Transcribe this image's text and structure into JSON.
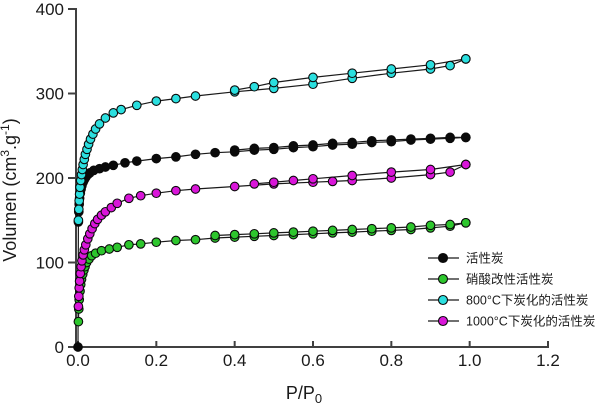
{
  "page": {
    "background": "#ffffff"
  },
  "chart_data": {
    "type": "line",
    "subtype": "adsorption-desorption-isotherm",
    "title": "",
    "xlabel": "P/P0",
    "ylabel": "Volumen (cm3.g-1)",
    "xlabel_parts": [
      {
        "t": "P/P"
      },
      {
        "t": "0",
        "script": "sub"
      }
    ],
    "ylabel_parts": [
      {
        "t": "Volumen (cm"
      },
      {
        "t": "3",
        "script": "sup"
      },
      {
        "t": ".g"
      },
      {
        "t": "-1",
        "script": "sup"
      },
      {
        "t": ")"
      }
    ],
    "grid": false,
    "legend_position": "lower right",
    "x_axis": {
      "range": [
        0,
        1.2
      ],
      "ticks": [
        0,
        0.2,
        0.4,
        0.6,
        0.8,
        1.0,
        1.2
      ],
      "tick_labels": [
        "0.0",
        "0.2",
        "0.4",
        "0.6",
        "0.8",
        "1.0",
        "1.2"
      ]
    },
    "y_axis": {
      "range": [
        0,
        400
      ],
      "ticks": [
        0,
        100,
        200,
        300,
        400
      ],
      "tick_labels": [
        "0",
        "100",
        "200",
        "300",
        "400"
      ]
    },
    "axis_color": "#404040",
    "line_color": "#1a1a1a",
    "series": [
      {
        "name": "活性炭",
        "color": "#0a0a0a",
        "marker": "circle",
        "adsorption": [
          [
            0,
            0
          ],
          [
            0.001,
            148
          ],
          [
            0.002,
            160
          ],
          [
            0.003,
            169
          ],
          [
            0.004,
            176
          ],
          [
            0.006,
            182
          ],
          [
            0.008,
            187
          ],
          [
            0.01,
            191
          ],
          [
            0.013,
            195
          ],
          [
            0.016,
            198
          ],
          [
            0.02,
            201
          ],
          [
            0.025,
            204
          ],
          [
            0.03,
            206
          ],
          [
            0.04,
            209
          ],
          [
            0.055,
            211
          ],
          [
            0.07,
            213
          ],
          [
            0.09,
            215
          ],
          [
            0.12,
            218
          ],
          [
            0.15,
            220
          ],
          [
            0.2,
            223
          ],
          [
            0.25,
            225
          ],
          [
            0.3,
            228
          ],
          [
            0.35,
            230
          ],
          [
            0.4,
            231
          ],
          [
            0.45,
            233
          ],
          [
            0.5,
            234
          ],
          [
            0.55,
            236
          ],
          [
            0.6,
            237
          ],
          [
            0.65,
            239
          ],
          [
            0.7,
            240
          ],
          [
            0.75,
            242
          ],
          [
            0.8,
            243
          ],
          [
            0.85,
            245
          ],
          [
            0.9,
            246
          ],
          [
            0.95,
            247
          ],
          [
            0.99,
            248
          ]
        ],
        "desorption": [
          [
            0.99,
            248
          ],
          [
            0.95,
            248
          ],
          [
            0.9,
            247
          ],
          [
            0.85,
            246
          ],
          [
            0.8,
            245
          ],
          [
            0.75,
            244
          ],
          [
            0.7,
            242
          ],
          [
            0.65,
            241
          ],
          [
            0.6,
            239
          ],
          [
            0.55,
            238
          ],
          [
            0.5,
            236
          ],
          [
            0.45,
            235
          ],
          [
            0.4,
            233
          ]
        ]
      },
      {
        "name": "硝酸改性活性炭",
        "color": "#2DC62D",
        "marker": "circle",
        "adsorption": [
          [
            0.001,
            30
          ],
          [
            0.002,
            45
          ],
          [
            0.003,
            56
          ],
          [
            0.005,
            66
          ],
          [
            0.007,
            74
          ],
          [
            0.009,
            80
          ],
          [
            0.012,
            86
          ],
          [
            0.015,
            91
          ],
          [
            0.018,
            95
          ],
          [
            0.022,
            100
          ],
          [
            0.028,
            104
          ],
          [
            0.035,
            108
          ],
          [
            0.045,
            111
          ],
          [
            0.06,
            114
          ],
          [
            0.08,
            116
          ],
          [
            0.1,
            118
          ],
          [
            0.13,
            121
          ],
          [
            0.16,
            122
          ],
          [
            0.2,
            124
          ],
          [
            0.25,
            126
          ],
          [
            0.3,
            127
          ],
          [
            0.35,
            129
          ],
          [
            0.4,
            130
          ],
          [
            0.45,
            131
          ],
          [
            0.5,
            132
          ],
          [
            0.55,
            133
          ],
          [
            0.6,
            134
          ],
          [
            0.65,
            135
          ],
          [
            0.7,
            136
          ],
          [
            0.75,
            137
          ],
          [
            0.8,
            138
          ],
          [
            0.85,
            139
          ],
          [
            0.9,
            141
          ],
          [
            0.95,
            143
          ],
          [
            0.99,
            147
          ]
        ],
        "desorption": [
          [
            0.99,
            147
          ],
          [
            0.95,
            145
          ],
          [
            0.9,
            144
          ],
          [
            0.85,
            142
          ],
          [
            0.8,
            141
          ],
          [
            0.75,
            140
          ],
          [
            0.7,
            139
          ],
          [
            0.65,
            138
          ],
          [
            0.6,
            137
          ],
          [
            0.55,
            136
          ],
          [
            0.5,
            135
          ],
          [
            0.45,
            134
          ],
          [
            0.4,
            133
          ],
          [
            0.35,
            132
          ]
        ]
      },
      {
        "name": "800°C下炭化的活性炭",
        "color": "#2BDFDF",
        "marker": "circle",
        "adsorption": [
          [
            0.001,
            150
          ],
          [
            0.002,
            163
          ],
          [
            0.003,
            173
          ],
          [
            0.004,
            181
          ],
          [
            0.005,
            189
          ],
          [
            0.007,
            197
          ],
          [
            0.009,
            204
          ],
          [
            0.011,
            210
          ],
          [
            0.013,
            216
          ],
          [
            0.016,
            222
          ],
          [
            0.019,
            228
          ],
          [
            0.023,
            234
          ],
          [
            0.027,
            240
          ],
          [
            0.032,
            246
          ],
          [
            0.038,
            252
          ],
          [
            0.045,
            258
          ],
          [
            0.055,
            264
          ],
          [
            0.07,
            271
          ],
          [
            0.09,
            277
          ],
          [
            0.11,
            281
          ],
          [
            0.15,
            286
          ],
          [
            0.2,
            291
          ],
          [
            0.25,
            294
          ],
          [
            0.3,
            297
          ],
          [
            0.4,
            302
          ],
          [
            0.5,
            306
          ],
          [
            0.6,
            311
          ],
          [
            0.7,
            318
          ],
          [
            0.8,
            324
          ],
          [
            0.9,
            329
          ],
          [
            0.95,
            333
          ],
          [
            0.99,
            341
          ]
        ],
        "desorption": [
          [
            0.99,
            341
          ],
          [
            0.9,
            334
          ],
          [
            0.8,
            329
          ],
          [
            0.7,
            324
          ],
          [
            0.6,
            319
          ],
          [
            0.5,
            313
          ],
          [
            0.45,
            308
          ],
          [
            0.4,
            304
          ]
        ]
      },
      {
        "name": "1000°C下炭化的活性炭",
        "color": "#D916D9",
        "marker": "circle",
        "adsorption": [
          [
            0.001,
            48
          ],
          [
            0.002,
            60
          ],
          [
            0.003,
            70
          ],
          [
            0.004,
            78
          ],
          [
            0.006,
            87
          ],
          [
            0.008,
            95
          ],
          [
            0.01,
            102
          ],
          [
            0.013,
            109
          ],
          [
            0.016,
            115
          ],
          [
            0.02,
            121
          ],
          [
            0.025,
            128
          ],
          [
            0.03,
            134
          ],
          [
            0.036,
            140
          ],
          [
            0.043,
            146
          ],
          [
            0.05,
            151
          ],
          [
            0.06,
            156
          ],
          [
            0.07,
            160
          ],
          [
            0.085,
            165
          ],
          [
            0.1,
            170
          ],
          [
            0.13,
            176
          ],
          [
            0.16,
            179
          ],
          [
            0.2,
            182
          ],
          [
            0.25,
            185
          ],
          [
            0.3,
            187
          ],
          [
            0.4,
            190
          ],
          [
            0.5,
            193
          ],
          [
            0.6,
            195
          ],
          [
            0.65,
            196
          ],
          [
            0.7,
            197
          ],
          [
            0.8,
            200
          ],
          [
            0.9,
            204
          ],
          [
            0.95,
            207
          ],
          [
            0.99,
            216
          ]
        ],
        "desorption": [
          [
            0.99,
            216
          ],
          [
            0.9,
            210
          ],
          [
            0.8,
            207
          ],
          [
            0.7,
            203
          ],
          [
            0.6,
            199
          ],
          [
            0.55,
            197
          ],
          [
            0.5,
            195
          ],
          [
            0.45,
            193
          ]
        ]
      }
    ],
    "legend": {
      "items": [
        "活性炭",
        "硝酸改性活性炭",
        "800°C下炭化的活性炭",
        "1000°C下炭化的活性炭"
      ]
    }
  }
}
